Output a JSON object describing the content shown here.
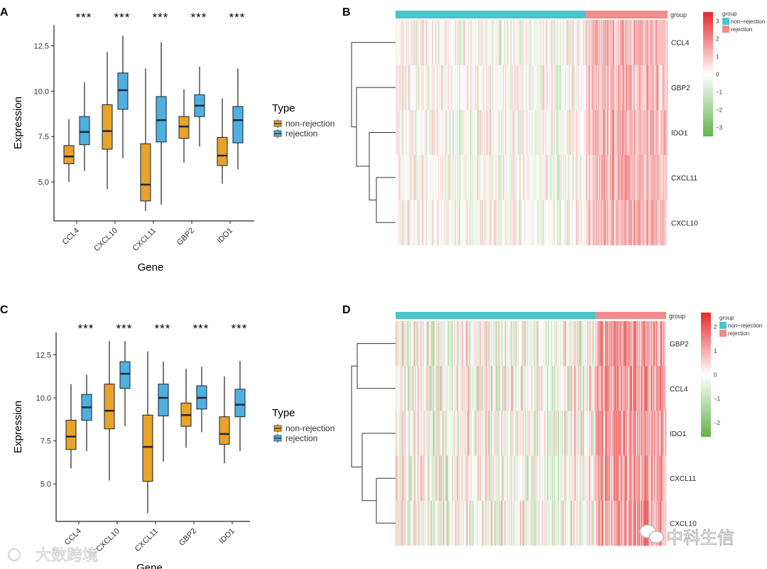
{
  "colors": {
    "non_rejection_box": "#e9a22a",
    "rejection_box": "#4fb0e0",
    "group_non_rejection": "#4bc4cc",
    "group_rejection": "#f08c8c",
    "heat_low": "#64b34a",
    "heat_mid": "#ffffff",
    "heat_high": "#e52a2c"
  },
  "watermarks": {
    "left": "大数跨境",
    "right": "中科生信"
  },
  "chart_data": [
    {
      "panel": "A",
      "type": "box",
      "xlabel": "Gene",
      "ylabel": "Expression",
      "yticks": [
        5.0,
        7.5,
        10.0,
        12.5
      ],
      "ytick_labels": [
        "5.0",
        "7.5",
        "10.0",
        "12.5"
      ],
      "ylim": [
        2.85,
        13.65
      ],
      "categories": [
        "CCL4",
        "CXCL10",
        "CXCL11",
        "GBP2",
        "IDO1"
      ],
      "significance": [
        "***",
        "***",
        "***",
        "***",
        "***"
      ],
      "legend": {
        "title": "Type",
        "entries": [
          "non-rejection",
          "rejection"
        ],
        "placement": "right"
      },
      "series": [
        {
          "name": "non-rejection",
          "boxes": [
            {
              "min": 5.0,
              "q1": 6.0,
              "median": 6.4,
              "q3": 7.0,
              "max": 8.45
            },
            {
              "min": 4.6,
              "q1": 6.8,
              "median": 7.8,
              "q3": 9.25,
              "max": 12.15
            },
            {
              "min": 3.4,
              "q1": 3.95,
              "median": 4.85,
              "q3": 7.1,
              "max": 11.25
            },
            {
              "min": 6.05,
              "q1": 7.4,
              "median": 8.05,
              "q3": 8.6,
              "max": 10.1
            },
            {
              "min": 4.9,
              "q1": 5.9,
              "median": 6.45,
              "q3": 7.45,
              "max": 9.6
            }
          ]
        },
        {
          "name": "rejection",
          "boxes": [
            {
              "min": 5.6,
              "q1": 7.05,
              "median": 7.75,
              "q3": 8.6,
              "max": 10.5
            },
            {
              "min": 6.3,
              "q1": 9.0,
              "median": 10.05,
              "q3": 11.0,
              "max": 13.05
            },
            {
              "min": 3.75,
              "q1": 7.2,
              "median": 8.4,
              "q3": 9.7,
              "max": 12.7
            },
            {
              "min": 6.95,
              "q1": 8.6,
              "median": 9.2,
              "q3": 9.8,
              "max": 11.35
            },
            {
              "min": 5.7,
              "q1": 7.15,
              "median": 8.4,
              "q3": 9.15,
              "max": 11.25
            }
          ]
        }
      ]
    },
    {
      "panel": "B",
      "type": "heatmap",
      "rows": [
        "CCL4",
        "GBP2",
        "IDO1",
        "CXCL11",
        "CXCL10"
      ],
      "annotation_label": "group",
      "groups": [
        {
          "name": "non-rejection",
          "fraction": 0.7
        },
        {
          "name": "rejection",
          "fraction": 0.3
        }
      ],
      "colorbar": {
        "min": -3.5,
        "max": 3.5,
        "ticks": [
          3,
          2,
          1,
          0,
          -1,
          -2,
          -3
        ],
        "tick_labels": [
          "3",
          "2",
          "1",
          "0",
          "−1",
          "−2",
          "−3"
        ]
      },
      "legend": {
        "title": "group",
        "entries": [
          "non−rejection",
          "rejection"
        ]
      }
    },
    {
      "panel": "C",
      "type": "box",
      "xlabel": "Gene",
      "ylabel": "Expression",
      "yticks": [
        5.0,
        7.5,
        10.0,
        12.5
      ],
      "ytick_labels": [
        "5.0",
        "7.5",
        "10.0",
        "12.5"
      ],
      "ylim": [
        2.82,
        13.8
      ],
      "categories": [
        "CCL4",
        "CXCL10",
        "CXCL11",
        "GBP2",
        "IDO1"
      ],
      "significance": [
        "***",
        "***",
        "***",
        "***",
        "***"
      ],
      "legend": {
        "title": "Type",
        "entries": [
          "non-rejection",
          "rejection"
        ],
        "placement": "right"
      },
      "series": [
        {
          "name": "non-rejection",
          "boxes": [
            {
              "min": 5.9,
              "q1": 7.0,
              "median": 7.75,
              "q3": 8.7,
              "max": 10.8
            },
            {
              "min": 5.2,
              "q1": 8.2,
              "median": 9.25,
              "q3": 10.8,
              "max": 13.3
            },
            {
              "min": 3.3,
              "q1": 5.15,
              "median": 7.15,
              "q3": 9.0,
              "max": 12.7
            },
            {
              "min": 7.1,
              "q1": 8.35,
              "median": 9.0,
              "q3": 9.7,
              "max": 11.7
            },
            {
              "min": 6.2,
              "q1": 7.3,
              "median": 7.9,
              "q3": 8.9,
              "max": 11.25
            }
          ]
        },
        {
          "name": "rejection",
          "boxes": [
            {
              "min": 6.9,
              "q1": 8.7,
              "median": 9.45,
              "q3": 10.2,
              "max": 11.35
            },
            {
              "min": 8.35,
              "q1": 10.55,
              "median": 11.4,
              "q3": 12.1,
              "max": 13.3
            },
            {
              "min": 6.3,
              "q1": 8.95,
              "median": 10.0,
              "q3": 10.8,
              "max": 12.1
            },
            {
              "min": 8.0,
              "q1": 9.35,
              "median": 10.0,
              "q3": 10.7,
              "max": 11.8
            },
            {
              "min": 6.9,
              "q1": 8.9,
              "median": 9.6,
              "q3": 10.5,
              "max": 12.15
            }
          ]
        }
      ]
    },
    {
      "panel": "D",
      "type": "heatmap",
      "rows": [
        "GBP2",
        "CCL4",
        "IDO1",
        "CXCL11",
        "CXCL10"
      ],
      "annotation_label": "group",
      "groups": [
        {
          "name": "non-rejection",
          "fraction": 0.74
        },
        {
          "name": "rejection",
          "fraction": 0.26
        }
      ],
      "colorbar": {
        "min": -2.6,
        "max": 2.6,
        "ticks": [
          2,
          1,
          0,
          -1,
          -2
        ],
        "tick_labels": [
          "2",
          "1",
          "0",
          "−1",
          "−2"
        ]
      },
      "legend": {
        "title": "group",
        "entries": [
          "non−rejection",
          "rejection"
        ]
      }
    }
  ]
}
